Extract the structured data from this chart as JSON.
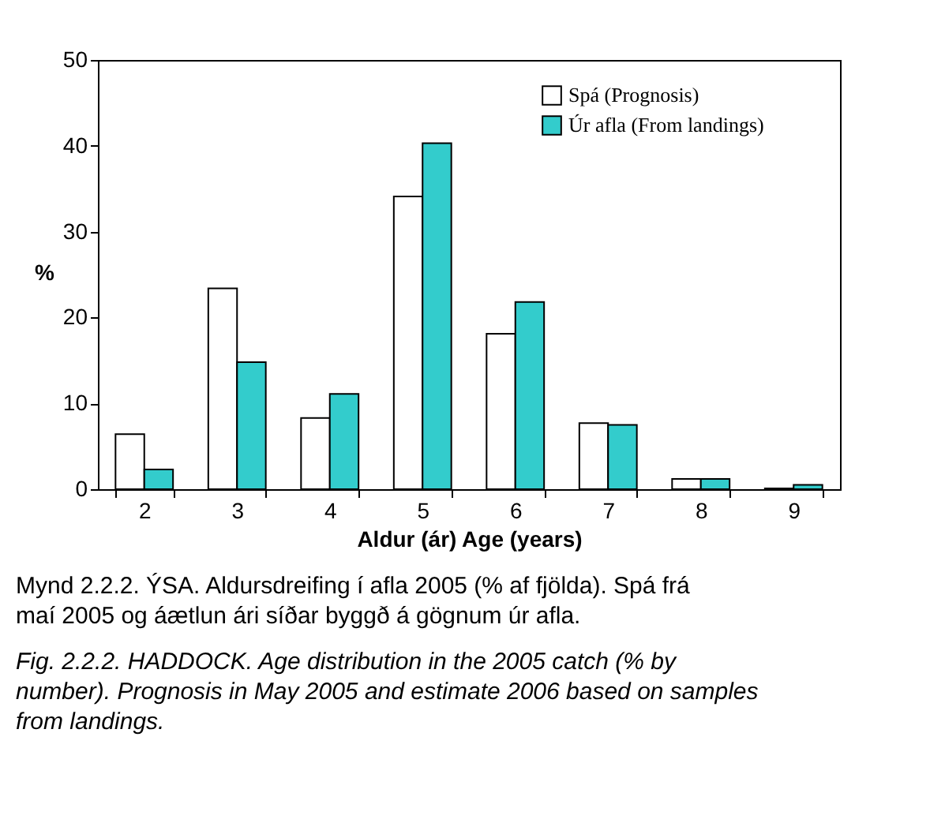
{
  "chart_data": {
    "type": "bar",
    "categories": [
      "2",
      "3",
      "4",
      "5",
      "6",
      "7",
      "8",
      "9"
    ],
    "series": [
      {
        "name": "Spá (Prognosis)",
        "color": "#ffffff",
        "values": [
          6.4,
          23.4,
          8.3,
          34.1,
          18.1,
          7.7,
          1.2,
          0.1
        ]
      },
      {
        "name": "Úr afla (From landings)",
        "color": "#33cccc",
        "values": [
          2.3,
          14.8,
          11.1,
          40.3,
          21.8,
          7.5,
          1.2,
          0.5
        ]
      }
    ],
    "xlabel": "Aldur (ár) Age (years)",
    "ylabel": "%",
    "ylim": [
      0,
      50
    ],
    "yticks": [
      0,
      10,
      20,
      30,
      40,
      50
    ],
    "grid": false,
    "legend": "top right",
    "annotations": [
      "Mynd 2.2.2. ÝSA. Aldursdreifing í afla 2005 (% af fjölda). Spá frá maí 2005 og áætlun ári síðar byggð á gögnum úr afla.",
      "Fig. 2.2.2. HADDOCK. Age distribution in the 2005 catch (% by number). Prognosis in May 2005 and estimate 2006 based on samples from landings."
    ]
  }
}
